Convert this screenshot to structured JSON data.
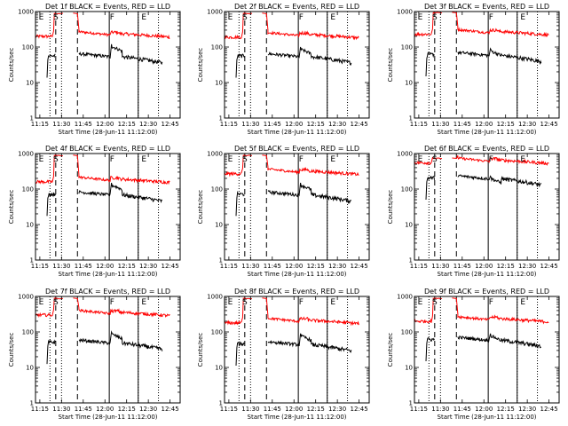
{
  "figure": {
    "xlabel": "Start Time (28-Jun-11 11:12:00)",
    "ylabel": "Counts/sec",
    "colors": {
      "events": "#000000",
      "lld": "#ff0000"
    }
  },
  "chart_data": {
    "type": "line",
    "x_ticks": [
      "11:15",
      "11:30",
      "11:45",
      "12:00",
      "12:15",
      "12:30",
      "12:45"
    ],
    "x_tick_minutes": [
      75,
      90,
      105,
      120,
      135,
      150,
      165
    ],
    "xlim_minutes": [
      72,
      172
    ],
    "y_scale": "log",
    "ylim": [
      1,
      1000
    ],
    "y_ticks": [
      1,
      10,
      100,
      1000
    ],
    "y_tick_labels": [
      "1",
      "10",
      "100",
      "1000"
    ],
    "grid": false,
    "markers": {
      "dotted": [
        82,
        90,
        143,
        157
      ],
      "dashed": [
        86,
        101
      ],
      "solid": [
        123,
        143
      ]
    },
    "marker_labels": [
      {
        "text": "E",
        "minute": 76
      },
      {
        "text": "S",
        "minute": 86
      },
      {
        "text": "F",
        "minute": 125
      },
      {
        "text": "E",
        "minute": 147
      }
    ],
    "panels": [
      {
        "title": "Det 1f  BLACK = Events, RED = LLD",
        "lld_base": 200,
        "lld_gap": 900,
        "events_base": 55,
        "events_peak": 120
      },
      {
        "title": "Det 2f  BLACK = Events, RED = LLD",
        "lld_base": 190,
        "lld_gap": 900,
        "events_base": 55,
        "events_peak": 100
      },
      {
        "title": "Det 3f  BLACK = Events, RED = LLD",
        "lld_base": 230,
        "lld_gap": 950,
        "events_base": 60,
        "events_peak": 90
      },
      {
        "title": "Det 4f  BLACK = Events, RED = LLD",
        "lld_base": 160,
        "lld_gap": 900,
        "events_base": 70,
        "events_peak": 150
      },
      {
        "title": "Det 5f  BLACK = Events, RED = LLD",
        "lld_base": 270,
        "lld_gap": 900,
        "events_base": 70,
        "events_peak": 150
      },
      {
        "title": "Det 6f  BLACK = Events, RED = LLD",
        "lld_base": 550,
        "lld_gap": 750,
        "events_base": 200,
        "events_peak": 230
      },
      {
        "title": "Det 7f  BLACK = Events, RED = LLD",
        "lld_base": 300,
        "lld_gap": 900,
        "events_base": 50,
        "events_peak": 100
      },
      {
        "title": "Det 8f  BLACK = Events, RED = LLD",
        "lld_base": 180,
        "lld_gap": 900,
        "events_base": 45,
        "events_peak": 90
      },
      {
        "title": "Det 9f  BLACK = Events, RED = LLD",
        "lld_base": 200,
        "lld_gap": 900,
        "events_base": 60,
        "events_peak": 90
      }
    ]
  }
}
